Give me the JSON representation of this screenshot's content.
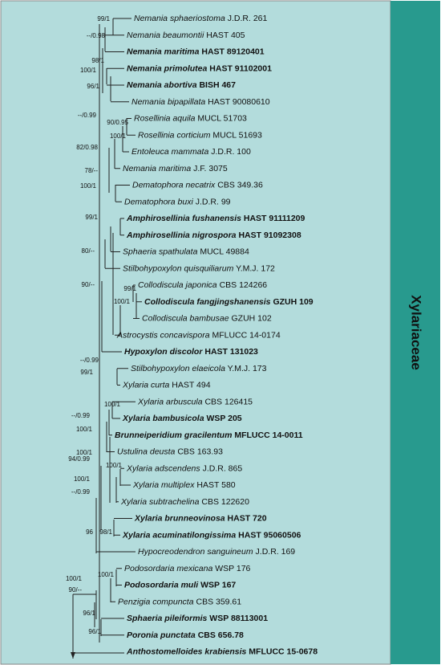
{
  "family": "Xylariaceae",
  "taxa": [
    {
      "name": "Nemania sphaeriostoma",
      "voucher": "J.D.R. 261",
      "bold": false
    },
    {
      "name": "Nemania beaumontii",
      "voucher": "HAST 405",
      "bold": false
    },
    {
      "name": "Nemania maritima",
      "voucher": "HAST 89120401",
      "bold": true
    },
    {
      "name": "Nemania primolutea",
      "voucher": "HAST 91102001",
      "bold": true
    },
    {
      "name": "Nemania abortiva",
      "voucher": "BISH 467",
      "bold": true
    },
    {
      "name": "Nemania bipapillata",
      "voucher": "HAST 90080610",
      "bold": false
    },
    {
      "name": "Rosellinia aquila",
      "voucher": "MUCL 51703",
      "bold": false
    },
    {
      "name": "Rosellinia corticium",
      "voucher": "MUCL 51693",
      "bold": false
    },
    {
      "name": "Entoleuca mammata",
      "voucher": "J.D.R. 100",
      "bold": false
    },
    {
      "name": "Nemania maritima",
      "voucher": "J.F. 3075",
      "bold": false
    },
    {
      "name": "Dematophora necatrix",
      "voucher": "CBS 349.36",
      "bold": false
    },
    {
      "name": "Dematophora buxi",
      "voucher": "J.D.R. 99",
      "bold": false
    },
    {
      "name": "Amphirosellinia fushanensis",
      "voucher": "HAST 91111209",
      "bold": true
    },
    {
      "name": "Amphirosellinia nigrospora",
      "voucher": "HAST 91092308",
      "bold": true
    },
    {
      "name": "Sphaeria spathulata",
      "voucher": "MUCL 49884",
      "bold": false
    },
    {
      "name": "Stilbohypoxylon quisquiliarum",
      "voucher": "Y.M.J. 172",
      "bold": false
    },
    {
      "name": "Collodiscula japonica",
      "voucher": "CBS 124266",
      "bold": false
    },
    {
      "name": "Collodiscula fangjingshanensis",
      "voucher": "GZUH 109",
      "bold": true
    },
    {
      "name": "Collodiscula bambusae",
      "voucher": "GZUH 102",
      "bold": false
    },
    {
      "name": "Astrocystis concavispora",
      "voucher": "MFLUCC 14-0174",
      "bold": false
    },
    {
      "name": "Hypoxylon discolor",
      "voucher": "HAST 131023",
      "bold": true
    },
    {
      "name": "Stilbohypoxylon elaeicola",
      "voucher": "Y.M.J. 173",
      "bold": false
    },
    {
      "name": "Xylaria curta",
      "voucher": "HAST 494",
      "bold": false
    },
    {
      "name": "Xylaria arbuscula",
      "voucher": "CBS 126415",
      "bold": false
    },
    {
      "name": "Xylaria bambusicola",
      "voucher": "WSP 205",
      "bold": true
    },
    {
      "name": "Brunneiperidium gracilentum",
      "voucher": "MFLUCC 14-0011",
      "bold": true
    },
    {
      "name": "Ustulina deusta",
      "voucher": "CBS 163.93",
      "bold": false
    },
    {
      "name": "Xylaria adscendens",
      "voucher": "J.D.R. 865",
      "bold": false
    },
    {
      "name": "Xylaria multiplex",
      "voucher": "HAST 580",
      "bold": false
    },
    {
      "name": "Xylaria subtrachelina",
      "voucher": "CBS 122620",
      "bold": false
    },
    {
      "name": "Xylaria brunneovinosa",
      "voucher": "HAST 720",
      "bold": true
    },
    {
      "name": "Xylaria acuminatilongissima",
      "voucher": "HAST 95060506",
      "bold": true
    },
    {
      "name": "Hypocreodendron sanguineum",
      "voucher": "J.D.R. 169",
      "bold": false
    },
    {
      "name": "Podosordaria mexicana",
      "voucher": "WSP 176",
      "bold": false
    },
    {
      "name": "Podosordaria muli",
      "voucher": "WSP 167",
      "bold": true
    },
    {
      "name": "Penzigia compuncta",
      "voucher": "CBS 359.61",
      "bold": false
    },
    {
      "name": "Sphaeria pileiformis",
      "voucher": "WSP 88113001",
      "bold": true
    },
    {
      "name": "Poronia punctata",
      "voucher": "CBS 656.78",
      "bold": true
    },
    {
      "name": "Anthostomelloides krabiensis",
      "voucher": "MFLUCC 15-0678",
      "bold": true
    }
  ],
  "support": [
    "99/1",
    "--/0.98",
    "98/1",
    "100/1",
    "96/1",
    "--/0.99",
    "90/0.95",
    "100/1",
    "82/0.98",
    "78/--",
    "100/1",
    "99/1",
    "80/--",
    "90/--",
    "99/1",
    "100/1",
    "--/0.99",
    "99/1",
    "100/1",
    "--/0.99",
    "100/1",
    "100/1",
    "94/0.99",
    "100/1",
    "100/1",
    "--/0.99",
    "98/1",
    "96",
    "100/1",
    "100/1",
    "90/--",
    "96/1",
    "96/1"
  ]
}
